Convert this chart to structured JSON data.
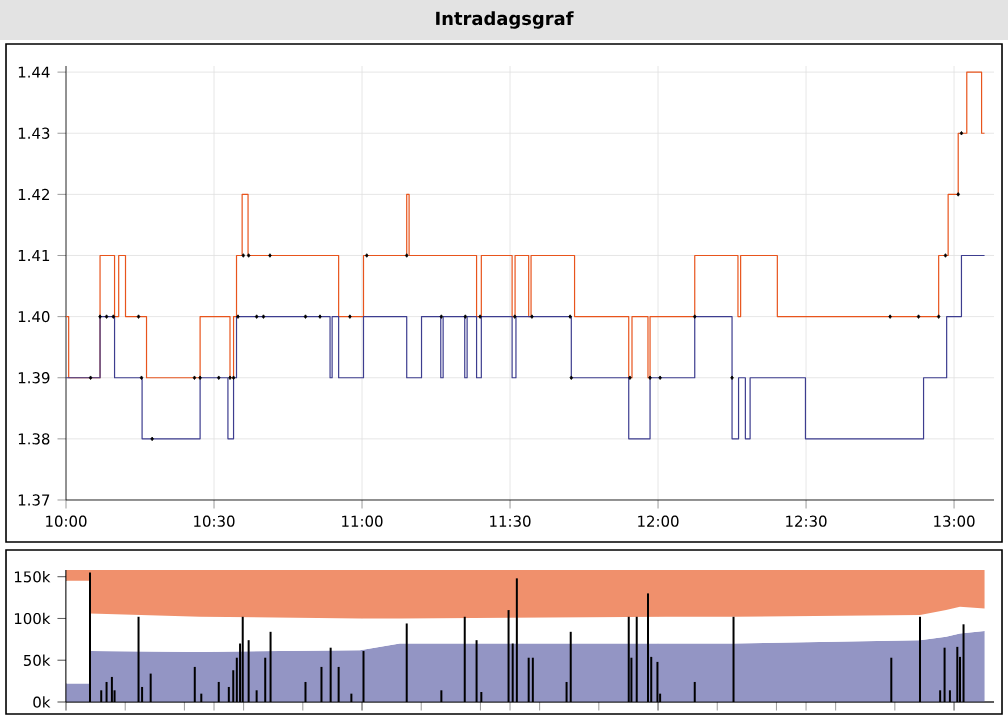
{
  "chart_data": [
    {
      "type": "step",
      "title": "Intradagsgraf",
      "xlim": [
        10,
        13.135
      ],
      "ylim": [
        1.37,
        1.441
      ],
      "grid": true,
      "marker": "none",
      "line_style": "solid",
      "xticks": [
        {
          "value": 10,
          "label": "10:00"
        },
        {
          "value": 10.5,
          "label": "10:30"
        },
        {
          "value": 11,
          "label": "11:00"
        },
        {
          "value": 11.5,
          "label": "11:30"
        },
        {
          "value": 12,
          "label": "12:00"
        },
        {
          "value": 12.5,
          "label": "12:30"
        },
        {
          "value": 13,
          "label": "13:00"
        }
      ],
      "yticks": [
        {
          "value": 1.37,
          "label": "1.37"
        },
        {
          "value": 1.38,
          "label": "1.38"
        },
        {
          "value": 1.39,
          "label": "1.39"
        },
        {
          "value": 1.4,
          "label": "1.40"
        },
        {
          "value": 1.41,
          "label": "1.41"
        },
        {
          "value": 1.42,
          "label": "1.42"
        },
        {
          "value": 1.43,
          "label": "1.43"
        },
        {
          "value": 1.44,
          "label": "1.44"
        }
      ],
      "series": [
        {
          "color": "#e8541c",
          "x": [
            10.0,
            10.009,
            10.115,
            10.164,
            10.178,
            10.201,
            10.272,
            10.453,
            10.554,
            10.566,
            10.576,
            10.595,
            10.615,
            10.921,
            11.005,
            11.151,
            11.159,
            11.387,
            11.403,
            11.507,
            11.517,
            11.563,
            11.571,
            11.718,
            11.901,
            11.912,
            11.966,
            11.973,
            12.124,
            12.27,
            12.279,
            12.403,
            12.948,
            12.98,
            13.014,
            13.043,
            13.093,
            13.103
          ],
          "values": [
            1.4,
            1.39,
            1.41,
            1.4,
            1.41,
            1.4,
            1.39,
            1.4,
            1.39,
            1.4,
            1.41,
            1.42,
            1.41,
            1.4,
            1.41,
            1.42,
            1.41,
            1.4,
            1.41,
            1.4,
            1.41,
            1.4,
            1.41,
            1.4,
            1.39,
            1.4,
            1.39,
            1.4,
            1.41,
            1.4,
            1.41,
            1.4,
            1.41,
            1.42,
            1.43,
            1.44,
            1.43,
            1.43
          ]
        },
        {
          "color": "#3d3d8f",
          "x": [
            10.0,
            10.115,
            10.164,
            10.257,
            10.453,
            10.547,
            10.566,
            10.576,
            10.892,
            10.899,
            10.921,
            11.005,
            11.151,
            11.201,
            11.266,
            11.274,
            11.347,
            11.355,
            11.387,
            11.403,
            11.507,
            11.52,
            11.707,
            11.901,
            11.973,
            12.124,
            12.25,
            12.272,
            12.295,
            12.311,
            12.498,
            12.897,
            12.975,
            13.025,
            13.103
          ],
          "values": [
            1.39,
            1.4,
            1.39,
            1.38,
            1.39,
            1.38,
            1.39,
            1.4,
            1.39,
            1.4,
            1.39,
            1.4,
            1.39,
            1.4,
            1.39,
            1.4,
            1.39,
            1.4,
            1.39,
            1.4,
            1.39,
            1.4,
            1.39,
            1.38,
            1.39,
            1.4,
            1.38,
            1.39,
            1.38,
            1.39,
            1.38,
            1.39,
            1.4,
            1.41,
            1.41
          ]
        },
        {
          "type": "scatter",
          "color": "#000000",
          "marker": "diamond",
          "x": [
            10.083,
            10.115,
            10.137,
            10.16,
            10.245,
            10.255,
            10.291,
            10.434,
            10.453,
            10.516,
            10.554,
            10.566,
            10.581,
            10.599,
            10.617,
            10.644,
            10.667,
            10.689,
            10.809,
            10.858,
            10.959,
            11.016,
            11.151,
            11.268,
            11.349,
            11.399,
            11.516,
            11.574,
            11.703,
            11.707,
            11.905,
            11.973,
            12.007,
            12.124,
            12.25,
            12.784,
            12.88,
            12.948,
            12.971,
            13.014,
            13.025
          ],
          "values": [
            1.39,
            1.4,
            1.4,
            1.4,
            1.4,
            1.39,
            1.38,
            1.39,
            1.39,
            1.39,
            1.39,
            1.39,
            1.4,
            1.41,
            1.41,
            1.4,
            1.4,
            1.41,
            1.4,
            1.4,
            1.4,
            1.41,
            1.41,
            1.4,
            1.4,
            1.4,
            1.4,
            1.4,
            1.4,
            1.39,
            1.39,
            1.39,
            1.39,
            1.4,
            1.39,
            1.4,
            1.4,
            1.4,
            1.41,
            1.42,
            1.43
          ]
        }
      ]
    },
    {
      "type": "area",
      "stacked": true,
      "xlim": [
        10,
        13.135
      ],
      "ylim": [
        0,
        158
      ],
      "grid": "x",
      "tick_labels": "y",
      "xticks": [
        {
          "value": 10,
          "label": null
        },
        {
          "value": 10.5,
          "label": null
        },
        {
          "value": 11,
          "label": null
        },
        {
          "value": 11.5,
          "label": null
        },
        {
          "value": 12,
          "label": null
        },
        {
          "value": 12.5,
          "label": null
        },
        {
          "value": 13,
          "label": null
        }
      ],
      "yticks": [
        {
          "value": 0,
          "label": "0k"
        },
        {
          "value": 50,
          "label": "50k"
        },
        {
          "value": 100,
          "label": "100k"
        },
        {
          "value": 150,
          "label": "150k"
        }
      ],
      "series": [
        {
          "color": "#9395c4",
          "x": [
            10.0,
            10.08,
            10.081,
            10.453,
            10.993,
            11.128,
            12.027,
            12.257,
            12.885,
            12.973,
            13.02,
            13.103
          ],
          "values": [
            22,
            22,
            61,
            60,
            62,
            70,
            70,
            70,
            74,
            78,
            82,
            85
          ]
        },
        {
          "color": "#ffffff",
          "x": [
            10.0,
            10.08,
            10.081,
            10.453,
            10.993,
            11.128,
            12.027,
            12.257,
            12.885,
            12.973,
            13.02,
            13.103
          ],
          "values": [
            123,
            123,
            45,
            42,
            38,
            30,
            32,
            32,
            30,
            32,
            32,
            27
          ]
        },
        {
          "color": "#f0906c",
          "x": [
            10.0,
            10.08,
            10.081,
            10.453,
            10.993,
            11.128,
            12.027,
            12.257,
            12.885,
            12.973,
            13.02,
            13.103
          ],
          "values": [
            13,
            13,
            52,
            56,
            58,
            58,
            56,
            56,
            54,
            48,
            44,
            46
          ]
        }
      ]
    },
    {
      "type": "bar",
      "xlim": [
        10,
        13.135
      ],
      "ylim": [
        0,
        158
      ],
      "tick_labels": false,
      "series": [
        {
          "color": "#000000",
          "x": [
            10.081,
            10.119,
            10.137,
            10.155,
            10.164,
            10.245,
            10.257,
            10.286,
            10.435,
            10.457,
            10.516,
            10.55,
            10.565,
            10.577,
            10.588,
            10.597,
            10.617,
            10.644,
            10.673,
            10.691,
            10.809,
            10.863,
            10.894,
            10.921,
            10.964,
            11.005,
            11.151,
            11.268,
            11.347,
            11.387,
            11.403,
            11.495,
            11.509,
            11.523,
            11.563,
            11.577,
            11.691,
            11.705,
            11.901,
            11.91,
            11.928,
            11.966,
            11.977,
            11.998,
            12.007,
            12.124,
            12.255,
            12.788,
            12.885,
            12.953,
            12.968,
            12.986,
            13.011,
            13.02,
            13.032
          ],
          "values": [
            155,
            14,
            24,
            30,
            14,
            102,
            18,
            34,
            42,
            10,
            24,
            18,
            38,
            53,
            70,
            102,
            74,
            14,
            53,
            84,
            24,
            42,
            65,
            42,
            10,
            61,
            94,
            14,
            102,
            74,
            12,
            110,
            70,
            148,
            53,
            53,
            24,
            84,
            102,
            53,
            102,
            130,
            54,
            48,
            10,
            24,
            102,
            53,
            102,
            14,
            65,
            14,
            66,
            54,
            93
          ]
        }
      ]
    }
  ]
}
